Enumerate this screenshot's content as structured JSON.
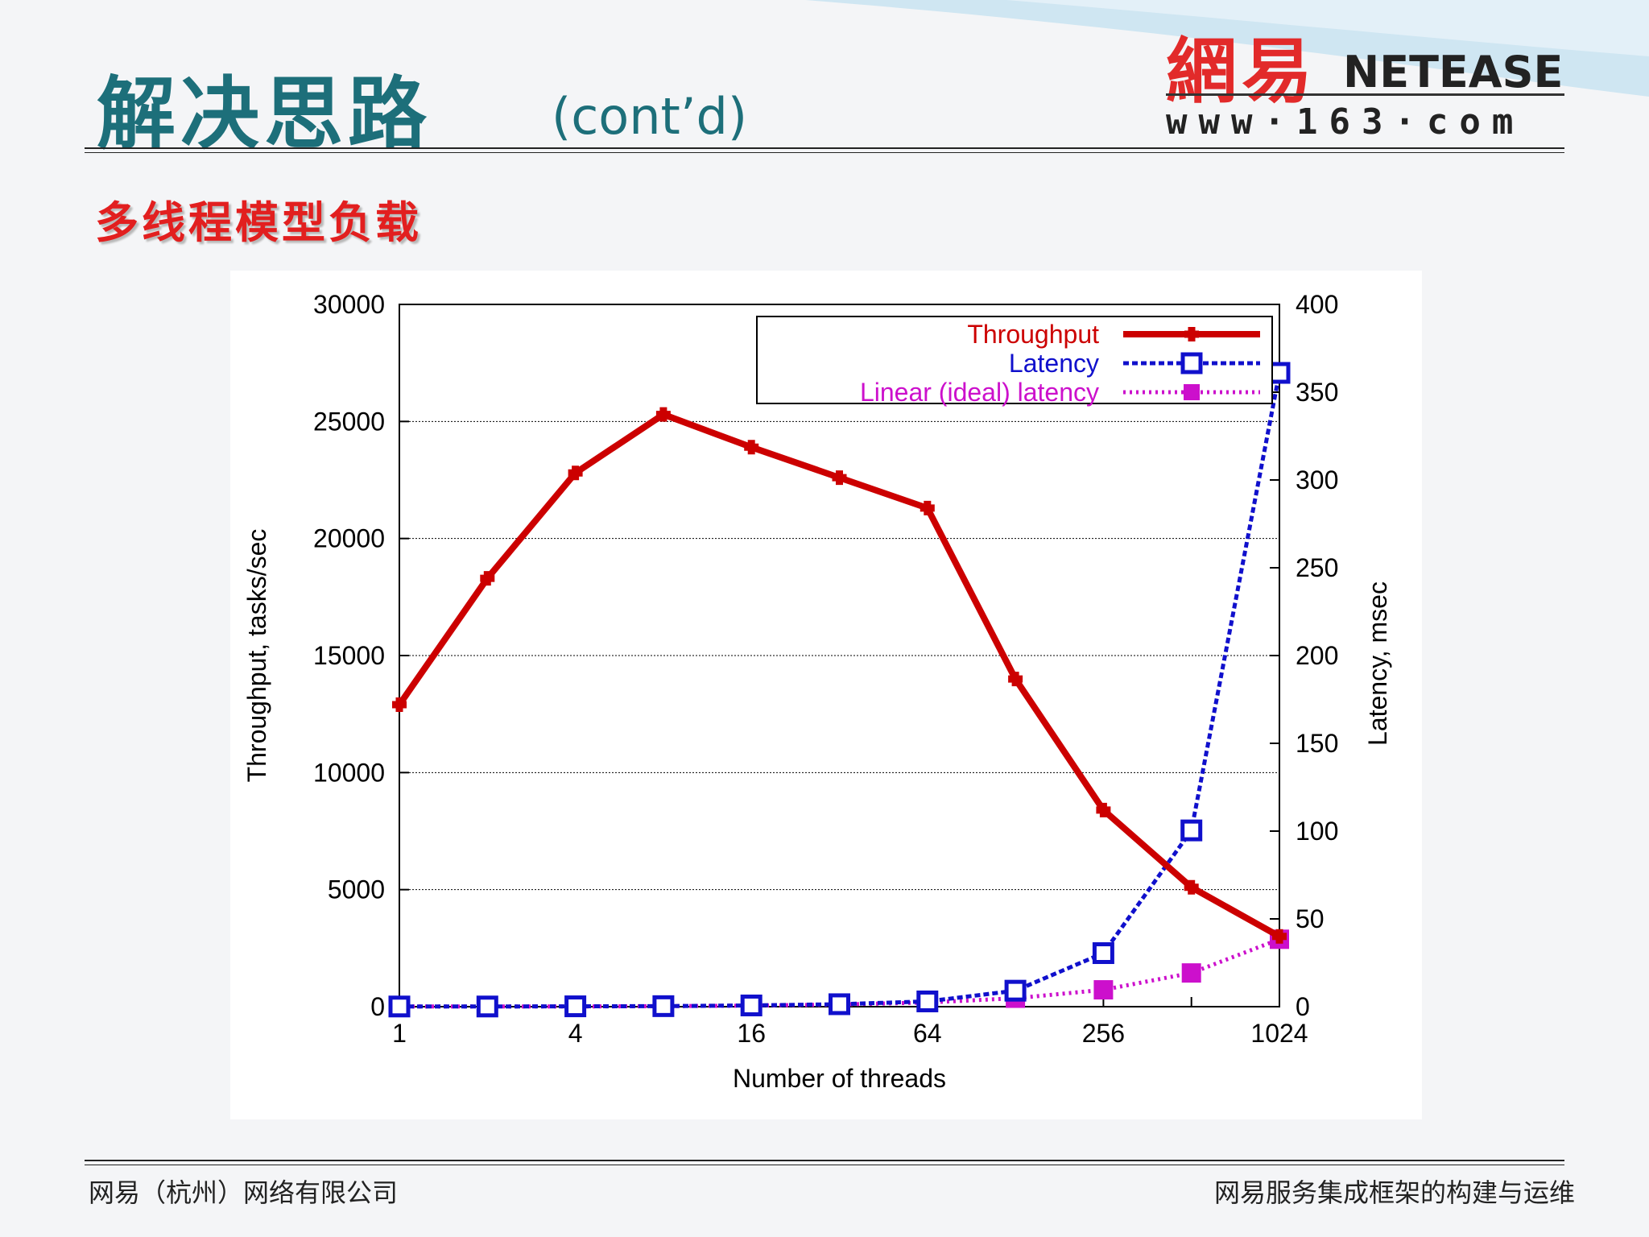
{
  "slide": {
    "title_zh": "解决思路",
    "title_en": "(cont’d)",
    "subtitle": "多线程模型负载"
  },
  "logo": {
    "cn": "網易",
    "en": "NETEASE",
    "url": "www·163·com"
  },
  "footer": {
    "left": "网易（杭州）网络有限公司",
    "right": "网易服务集成框架的构建与运维"
  },
  "colors": {
    "title": "#1d6f7a",
    "subtitle": "#e21f1f",
    "throughput": "#cc0000",
    "latency": "#1010cc",
    "linear": "#cc10cc"
  },
  "chart_data": {
    "type": "line",
    "xlabel": "Number of threads",
    "ylabel": "Throughput, tasks/sec",
    "y2label": "Latency, msec",
    "x_scale": "log2",
    "x": [
      1,
      2,
      4,
      8,
      16,
      32,
      64,
      128,
      256,
      512,
      1024
    ],
    "x_ticks": [
      "1",
      "4",
      "16",
      "64",
      "256",
      "1024"
    ],
    "x_tick_values": [
      1,
      4,
      16,
      64,
      256,
      1024
    ],
    "ylim": [
      0,
      30000
    ],
    "y_ticks": [
      "0",
      "5000",
      "10000",
      "15000",
      "20000",
      "25000",
      "30000"
    ],
    "y2lim": [
      0,
      400
    ],
    "y2_ticks": [
      "0",
      "50",
      "100",
      "150",
      "200",
      "250",
      "300",
      "350",
      "400"
    ],
    "grid": true,
    "legend_position": "top-right",
    "series": [
      {
        "name": "Throughput",
        "axis": "left",
        "values": [
          12900,
          18300,
          22800,
          25300,
          23900,
          22600,
          21300,
          14000,
          8400,
          5100,
          3000
        ]
      },
      {
        "name": "Latency",
        "axis": "right",
        "values": [
          0.1,
          0.1,
          0.2,
          0.3,
          0.7,
          1.4,
          3.0,
          9.1,
          30.5,
          100.4,
          361.0
        ]
      },
      {
        "name": "Linear (ideal) latency",
        "axis": "right",
        "values": [
          0.1,
          0.1,
          0.1,
          0.3,
          0.6,
          1.2,
          2.4,
          4.8,
          9.6,
          19.2,
          38.4
        ]
      }
    ]
  }
}
